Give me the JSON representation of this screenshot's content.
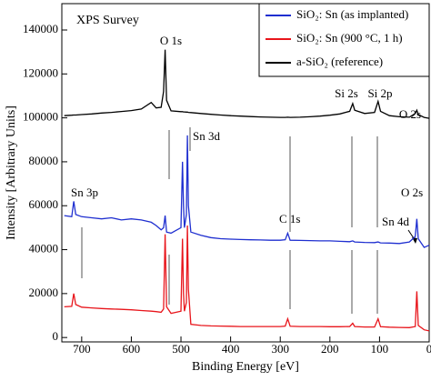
{
  "chart_data": {
    "type": "line",
    "annotations": [
      "XPS Survey",
      "O 1s",
      "Si 2s",
      "Si 2p",
      "O 2s",
      "Sn 3d",
      "Sn 3p",
      "C 1s",
      "Sn 4d",
      "O 2s"
    ],
    "x_label": "Binding Energy [eV]",
    "y_label": "Intensity [Arbitrary Units]",
    "x": [
      735,
      720,
      716,
      712,
      700,
      680,
      660,
      640,
      620,
      600,
      580,
      560,
      550,
      540,
      535,
      532,
      529,
      520,
      500,
      497,
      495,
      493,
      489,
      487,
      485,
      480,
      460,
      440,
      420,
      400,
      380,
      360,
      340,
      320,
      300,
      290,
      285,
      280,
      260,
      240,
      220,
      200,
      180,
      160,
      154,
      150,
      130,
      110,
      103,
      98,
      80,
      60,
      40,
      28,
      25,
      22,
      10,
      0
    ],
    "series": [
      {
        "name": "SiO₂: Sn (as implanted)",
        "color": "#1f2fd0",
        "values": [
          55500,
          55000,
          62000,
          56000,
          55000,
          54500,
          54000,
          54500,
          53500,
          54000,
          53500,
          52500,
          51000,
          49000,
          50000,
          55500,
          48000,
          47500,
          50000,
          80000,
          60000,
          50000,
          56000,
          92000,
          60000,
          48000,
          46500,
          45500,
          45000,
          44800,
          44600,
          44500,
          44400,
          44300,
          44300,
          44500,
          47500,
          44300,
          44200,
          44100,
          44000,
          44000,
          43800,
          43600,
          44000,
          43500,
          43300,
          43200,
          43500,
          43100,
          43000,
          42800,
          43500,
          46000,
          54000,
          45000,
          41000,
          42000
        ]
      },
      {
        "name": "SiO₂: Sn (900 °C, 1 h)",
        "color": "#e8151b",
        "values": [
          14000,
          14200,
          20000,
          15000,
          13800,
          13500,
          13200,
          13000,
          12800,
          12600,
          12300,
          12000,
          11800,
          11500,
          13000,
          47000,
          14000,
          11000,
          12000,
          45000,
          20000,
          12000,
          16000,
          51000,
          22000,
          6000,
          5500,
          5300,
          5200,
          5100,
          5000,
          5000,
          5000,
          5000,
          5000,
          5200,
          8500,
          5100,
          5000,
          5000,
          5000,
          4900,
          4900,
          5000,
          6500,
          5000,
          4800,
          4800,
          8500,
          4900,
          4700,
          4600,
          4500,
          5000,
          21000,
          5500,
          3500,
          3000
        ]
      },
      {
        "name": "a-SiO₂   (reference)",
        "color": "#000000",
        "values": [
          101000,
          101200,
          101300,
          101300,
          101500,
          101800,
          102200,
          102500,
          102900,
          103300,
          104000,
          107000,
          104500,
          104800,
          112000,
          131000,
          108000,
          103200,
          102800,
          102800,
          102700,
          102700,
          102600,
          102600,
          102500,
          102400,
          102000,
          101600,
          101300,
          101000,
          100800,
          100600,
          100400,
          100300,
          100200,
          100200,
          100300,
          100200,
          100300,
          100500,
          100800,
          101200,
          101800,
          103000,
          106500,
          103500,
          102000,
          102500,
          107500,
          103000,
          101000,
          100500,
          100300,
          102000,
          103500,
          101500,
          100200,
          99800
        ]
      }
    ],
    "xlim": [
      740,
      0
    ],
    "xticks": [
      700,
      600,
      500,
      400,
      300,
      200,
      100,
      0
    ],
    "ylim": [
      -2000,
      152000
    ],
    "yticks": [
      0,
      20000,
      40000,
      60000,
      80000,
      100000,
      120000,
      140000
    ]
  }
}
